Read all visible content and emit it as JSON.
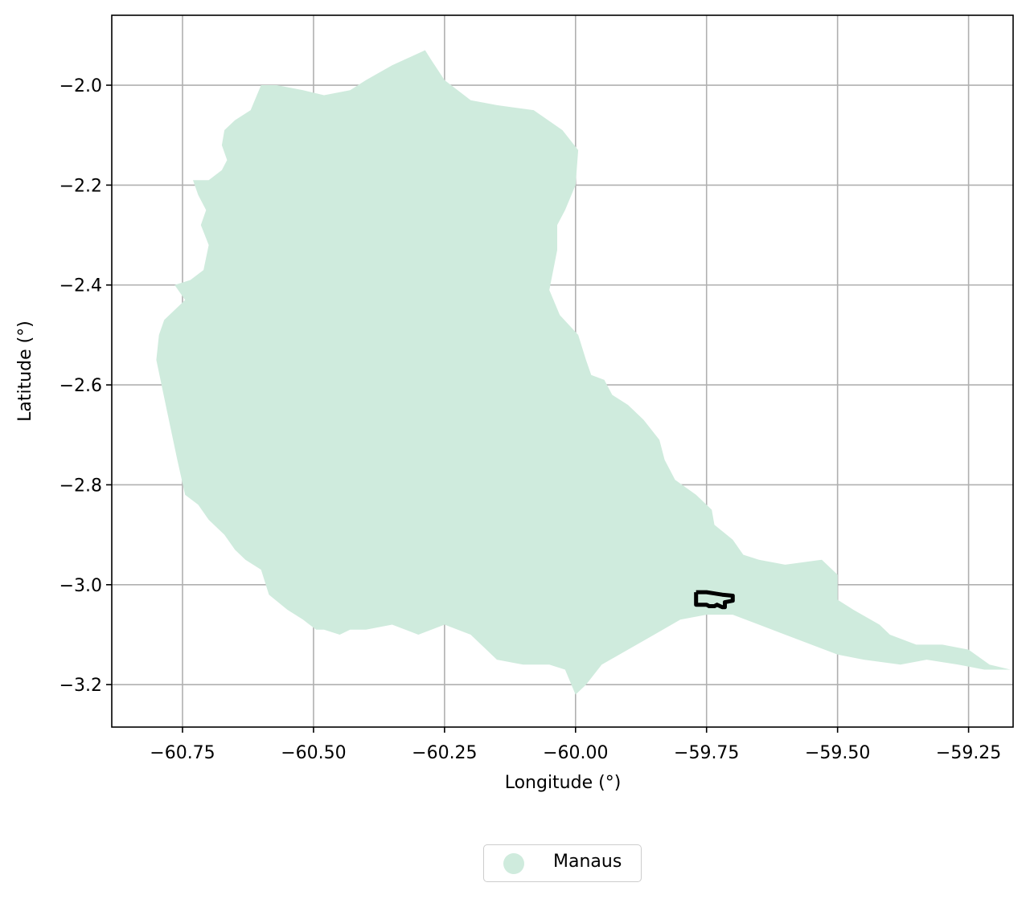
{
  "chart_data": {
    "type": "map",
    "xlabel": "Longitude (°)",
    "ylabel": "Latitude (°)",
    "xlim": [
      -60.885,
      -59.165
    ],
    "ylim": [
      -3.285,
      -1.86
    ],
    "xticks": [
      -60.75,
      -60.5,
      -60.25,
      -60.0,
      -59.75,
      -59.5,
      -59.25
    ],
    "xtick_labels": [
      "−60.75",
      "−60.50",
      "−60.25",
      "−60.00",
      "−59.75",
      "−59.50",
      "−59.25"
    ],
    "yticks": [
      -2.0,
      -2.2,
      -2.4,
      -2.6,
      -2.8,
      -3.0,
      -3.2
    ],
    "ytick_labels": [
      "−2.0",
      "−2.2",
      "−2.4",
      "−2.6",
      "−2.8",
      "−3.0",
      "−3.2"
    ],
    "grid": true,
    "legend": {
      "placement": "bottom-center",
      "entries": [
        {
          "name": "Manaus",
          "color": "#cfebdd"
        }
      ]
    },
    "colors": {
      "region_fill": "#cfebdd",
      "outline": "#000000",
      "grid": "#b0b0b0"
    },
    "region_lonlat": [
      [
        -60.287,
        -1.93
      ],
      [
        -60.35,
        -1.96
      ],
      [
        -60.4,
        -1.99
      ],
      [
        -60.43,
        -2.01
      ],
      [
        -60.48,
        -2.02
      ],
      [
        -60.52,
        -2.01
      ],
      [
        -60.57,
        -2.0
      ],
      [
        -60.6,
        -2.0
      ],
      [
        -60.62,
        -2.05
      ],
      [
        -60.65,
        -2.07
      ],
      [
        -60.67,
        -2.09
      ],
      [
        -60.675,
        -2.12
      ],
      [
        -60.665,
        -2.15
      ],
      [
        -60.675,
        -2.17
      ],
      [
        -60.7,
        -2.19
      ],
      [
        -60.73,
        -2.19
      ],
      [
        -60.72,
        -2.22
      ],
      [
        -60.705,
        -2.25
      ],
      [
        -60.715,
        -2.28
      ],
      [
        -60.7,
        -2.32
      ],
      [
        -60.71,
        -2.37
      ],
      [
        -60.735,
        -2.39
      ],
      [
        -60.765,
        -2.4
      ],
      [
        -60.745,
        -2.43
      ],
      [
        -60.785,
        -2.47
      ],
      [
        -60.795,
        -2.5
      ],
      [
        -60.8,
        -2.55
      ],
      [
        -60.78,
        -2.65
      ],
      [
        -60.76,
        -2.75
      ],
      [
        -60.745,
        -2.82
      ],
      [
        -60.72,
        -2.84
      ],
      [
        -60.7,
        -2.87
      ],
      [
        -60.67,
        -2.9
      ],
      [
        -60.65,
        -2.93
      ],
      [
        -60.63,
        -2.95
      ],
      [
        -60.6,
        -2.97
      ],
      [
        -60.585,
        -3.02
      ],
      [
        -60.55,
        -3.05
      ],
      [
        -60.52,
        -3.07
      ],
      [
        -60.495,
        -3.09
      ],
      [
        -60.48,
        -3.09
      ],
      [
        -60.45,
        -3.1
      ],
      [
        -60.43,
        -3.09
      ],
      [
        -60.4,
        -3.09
      ],
      [
        -60.35,
        -3.08
      ],
      [
        -60.3,
        -3.1
      ],
      [
        -60.25,
        -3.08
      ],
      [
        -60.2,
        -3.1
      ],
      [
        -60.15,
        -3.15
      ],
      [
        -60.1,
        -3.16
      ],
      [
        -60.05,
        -3.16
      ],
      [
        -60.02,
        -3.17
      ],
      [
        -60.0,
        -3.22
      ],
      [
        -59.98,
        -3.2
      ],
      [
        -59.95,
        -3.16
      ],
      [
        -59.9,
        -3.13
      ],
      [
        -59.85,
        -3.1
      ],
      [
        -59.8,
        -3.07
      ],
      [
        -59.75,
        -3.06
      ],
      [
        -59.7,
        -3.06
      ],
      [
        -59.65,
        -3.08
      ],
      [
        -59.6,
        -3.1
      ],
      [
        -59.55,
        -3.12
      ],
      [
        -59.5,
        -3.14
      ],
      [
        -59.45,
        -3.15
      ],
      [
        -59.38,
        -3.16
      ],
      [
        -59.33,
        -3.15
      ],
      [
        -59.27,
        -3.16
      ],
      [
        -59.22,
        -3.17
      ],
      [
        -59.17,
        -3.17
      ],
      [
        -59.21,
        -3.16
      ],
      [
        -59.25,
        -3.13
      ],
      [
        -59.3,
        -3.12
      ],
      [
        -59.35,
        -3.12
      ],
      [
        -59.4,
        -3.1
      ],
      [
        -59.42,
        -3.08
      ],
      [
        -59.47,
        -3.05
      ],
      [
        -59.5,
        -3.03
      ],
      [
        -59.5,
        -2.98
      ],
      [
        -59.53,
        -2.95
      ],
      [
        -59.6,
        -2.96
      ],
      [
        -59.65,
        -2.95
      ],
      [
        -59.68,
        -2.94
      ],
      [
        -59.7,
        -2.91
      ],
      [
        -59.735,
        -2.88
      ],
      [
        -59.74,
        -2.85
      ],
      [
        -59.77,
        -2.82
      ],
      [
        -59.81,
        -2.79
      ],
      [
        -59.83,
        -2.75
      ],
      [
        -59.84,
        -2.71
      ],
      [
        -59.87,
        -2.67
      ],
      [
        -59.9,
        -2.64
      ],
      [
        -59.93,
        -2.62
      ],
      [
        -59.945,
        -2.59
      ],
      [
        -59.97,
        -2.58
      ],
      [
        -59.98,
        -2.55
      ],
      [
        -59.995,
        -2.5
      ],
      [
        -60.03,
        -2.46
      ],
      [
        -60.05,
        -2.41
      ],
      [
        -60.035,
        -2.33
      ],
      [
        -60.035,
        -2.28
      ],
      [
        -60.02,
        -2.25
      ],
      [
        -60.0,
        -2.2
      ],
      [
        -59.995,
        -2.13
      ],
      [
        -60.025,
        -2.09
      ],
      [
        -60.08,
        -2.05
      ],
      [
        -60.15,
        -2.04
      ],
      [
        -60.2,
        -2.03
      ],
      [
        -60.25,
        -1.99
      ],
      [
        -60.275,
        -1.95
      ]
    ],
    "outline_lonlat": [
      [
        -59.77,
        -3.015
      ],
      [
        -59.75,
        -3.015
      ],
      [
        -59.72,
        -3.02
      ],
      [
        -59.7,
        -3.022
      ],
      [
        -59.7,
        -3.032
      ],
      [
        -59.715,
        -3.035
      ],
      [
        -59.715,
        -3.045
      ],
      [
        -59.72,
        -3.045
      ],
      [
        -59.73,
        -3.04
      ],
      [
        -59.735,
        -3.043
      ],
      [
        -59.745,
        -3.043
      ],
      [
        -59.75,
        -3.04
      ],
      [
        -59.77,
        -3.04
      ],
      [
        -59.77,
        -3.015
      ]
    ]
  }
}
